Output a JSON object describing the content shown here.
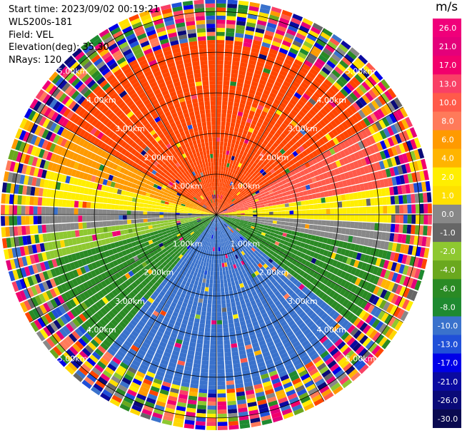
{
  "header": {
    "start_time": "Start time: 2023/09/02 00:19:21",
    "station": "WLS200s-181",
    "field": "Field: VEL",
    "elevation": "Elevation(deg): 35.30",
    "nrays": "NRays: 120"
  },
  "colorbar": {
    "unit": "m/s",
    "ticks": [
      "26.0",
      "21.0",
      "17.0",
      "13.0",
      "10.0",
      "8.0",
      "6.0",
      "4.0",
      "2.0",
      "1.0",
      "0.0",
      "-1.0",
      "-2.0",
      "-4.0",
      "-6.0",
      "-8.0",
      "-10.0",
      "-13.0",
      "-17.0",
      "-21.0",
      "-26.0",
      "-30.0"
    ],
    "colors": [
      "#f0007a",
      "#e4007a",
      "#f2006c",
      "#f94066",
      "#ff5a4a",
      "#ff7a5a",
      "#ff9a00",
      "#ffb400",
      "#ffee00",
      "#ffe000",
      "#888888",
      "#666666",
      "#8ec830",
      "#6aa81e",
      "#2a8a24",
      "#1e8a30",
      "#3a72cc",
      "#2050d8",
      "#0000e8",
      "#0a0aa0",
      "#0a0a78",
      "#0a0a50"
    ]
  },
  "chart_data": {
    "type": "ppi",
    "field": "VEL",
    "units": "m/s",
    "nrays": 120,
    "range_rings_km": [
      1.0,
      2.0,
      3.0,
      4.0,
      5.0
    ],
    "ring_labels": [
      "1.00km",
      "2.00km",
      "3.00km",
      "4.00km",
      "5.00km"
    ],
    "max_range_km": 5.3,
    "color_scale": [
      {
        "min": 21.0,
        "max": 26.0,
        "color": "#f0007a"
      },
      {
        "min": 17.0,
        "max": 21.0,
        "color": "#e4007a"
      },
      {
        "min": 13.0,
        "max": 17.0,
        "color": "#f2006c"
      },
      {
        "min": 10.0,
        "max": 13.0,
        "color": "#f94066"
      },
      {
        "min": 8.0,
        "max": 10.0,
        "color": "#ff5a4a"
      },
      {
        "min": 6.0,
        "max": 8.0,
        "color": "#ff7a5a"
      },
      {
        "min": 4.0,
        "max": 6.0,
        "color": "#ff9a00"
      },
      {
        "min": 2.0,
        "max": 4.0,
        "color": "#ffb400"
      },
      {
        "min": 1.0,
        "max": 2.0,
        "color": "#ffee00"
      },
      {
        "min": 0.0,
        "max": 1.0,
        "color": "#ffe000"
      },
      {
        "min": -1.0,
        "max": 0.0,
        "color": "#888888"
      },
      {
        "min": -2.0,
        "max": -1.0,
        "color": "#666666"
      },
      {
        "min": -4.0,
        "max": -2.0,
        "color": "#8ec830"
      },
      {
        "min": -6.0,
        "max": -4.0,
        "color": "#6aa81e"
      },
      {
        "min": -8.0,
        "max": -6.0,
        "color": "#2a8a24"
      },
      {
        "min": -10.0,
        "max": -8.0,
        "color": "#1e8a30"
      },
      {
        "min": -13.0,
        "max": -10.0,
        "color": "#3a72cc"
      },
      {
        "min": -17.0,
        "max": -13.0,
        "color": "#2050d8"
      },
      {
        "min": -21.0,
        "max": -17.0,
        "color": "#0000e8"
      },
      {
        "min": -26.0,
        "max": -21.0,
        "color": "#0a0aa0"
      },
      {
        "min": -30.0,
        "max": -26.0,
        "color": "#0a0a78"
      }
    ],
    "sectors": [
      {
        "azimuth_deg": [
          300,
          60
        ],
        "color": "#ff4500"
      },
      {
        "azimuth_deg": [
          60,
          80
        ],
        "color": "#ff5a4a"
      },
      {
        "azimuth_deg": [
          80,
          92
        ],
        "color": "#ffee00"
      },
      {
        "azimuth_deg": [
          92,
          102
        ],
        "color": "#888888"
      },
      {
        "azimuth_deg": [
          102,
          130
        ],
        "color": "#2a8a24"
      },
      {
        "azimuth_deg": [
          130,
          220
        ],
        "color": "#3a72cc"
      },
      {
        "azimuth_deg": [
          220,
          255
        ],
        "color": "#2a8a24"
      },
      {
        "azimuth_deg": [
          255,
          265
        ],
        "color": "#8ec830"
      },
      {
        "azimuth_deg": [
          265,
          272
        ],
        "color": "#888888"
      },
      {
        "azimuth_deg": [
          272,
          285
        ],
        "color": "#ffee00"
      },
      {
        "azimuth_deg": [
          285,
          300
        ],
        "color": "#ff9a00"
      }
    ],
    "noisy_from_km": 4.3
  }
}
